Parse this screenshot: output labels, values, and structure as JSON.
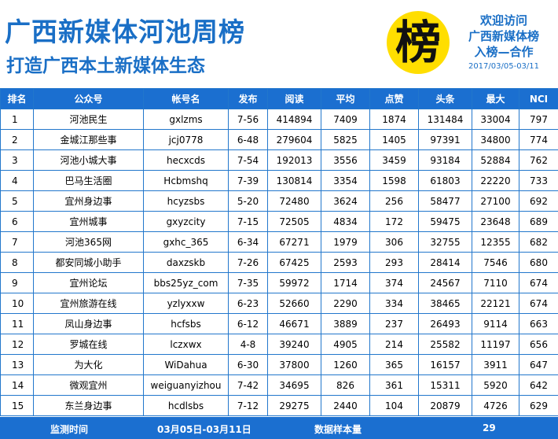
{
  "header": {
    "title": "广西新媒体河池周榜",
    "subtitle": "打造广西本土新媒体生态",
    "badge_char": "榜",
    "side": {
      "line1": "欢迎访问",
      "line2": "广西新媒体榜",
      "line3": "入榜—合作",
      "date": "2017/03/05-03/11"
    },
    "colors": {
      "title": "#1a6fc6",
      "badge": "#ffde00",
      "table_header": "#1b6fd0"
    }
  },
  "table": {
    "columns": [
      "排名",
      "公众号",
      "帐号名",
      "发布",
      "阅读",
      "平均",
      "点赞",
      "头条",
      "最大",
      "NCI"
    ],
    "rows": [
      [
        "1",
        "河池民生",
        "gxlzms",
        "7-56",
        "414894",
        "7409",
        "1874",
        "131484",
        "33004",
        "797"
      ],
      [
        "2",
        "金城江那些事",
        "jcj0778",
        "6-48",
        "279604",
        "5825",
        "1405",
        "97391",
        "34800",
        "774"
      ],
      [
        "3",
        "河池小城大事",
        "hecxcds",
        "7-54",
        "192013",
        "3556",
        "3459",
        "93184",
        "52884",
        "762"
      ],
      [
        "4",
        "巴马生活圈",
        "Hcbmshq",
        "7-39",
        "130814",
        "3354",
        "1598",
        "61803",
        "22220",
        "733"
      ],
      [
        "5",
        "宜州身边事",
        "hcyzsbs",
        "5-20",
        "72480",
        "3624",
        "256",
        "58477",
        "27100",
        "692"
      ],
      [
        "6",
        "宜州城事",
        "gxyzcity",
        "7-15",
        "72505",
        "4834",
        "172",
        "59475",
        "23648",
        "689"
      ],
      [
        "7",
        "河池365网",
        "gxhc_365",
        "6-34",
        "67271",
        "1979",
        "306",
        "32755",
        "12355",
        "682"
      ],
      [
        "8",
        "都安同城小助手",
        "daxzskb",
        "7-26",
        "67425",
        "2593",
        "293",
        "28414",
        "7546",
        "680"
      ],
      [
        "9",
        "宜州论坛",
        "bbs25yz_com",
        "7-35",
        "59972",
        "1714",
        "374",
        "24567",
        "7110",
        "674"
      ],
      [
        "10",
        "宜州旅游在线",
        "yzlyxxw",
        "6-23",
        "52660",
        "2290",
        "334",
        "38465",
        "22121",
        "674"
      ],
      [
        "11",
        "凤山身边事",
        "hcfsbs",
        "6-12",
        "46671",
        "3889",
        "237",
        "26493",
        "9114",
        "663"
      ],
      [
        "12",
        "罗城在线",
        "lczxwx",
        "4-8",
        "39240",
        "4905",
        "214",
        "25582",
        "11197",
        "656"
      ],
      [
        "13",
        "为大化",
        "WiDahua",
        "6-30",
        "37800",
        "1260",
        "365",
        "16157",
        "3911",
        "647"
      ],
      [
        "14",
        "微观宜州",
        "weiguanyizhou",
        "7-42",
        "34695",
        "826",
        "361",
        "15311",
        "5920",
        "642"
      ],
      [
        "15",
        "东兰身边事",
        "hcdlsbs",
        "7-12",
        "29275",
        "2440",
        "104",
        "20879",
        "4726",
        "629"
      ]
    ]
  },
  "footer": {
    "period_label": "监测时间",
    "period_value": "03月05日-03月11日",
    "sample_label": "数据样本量",
    "sample_value": "29"
  }
}
